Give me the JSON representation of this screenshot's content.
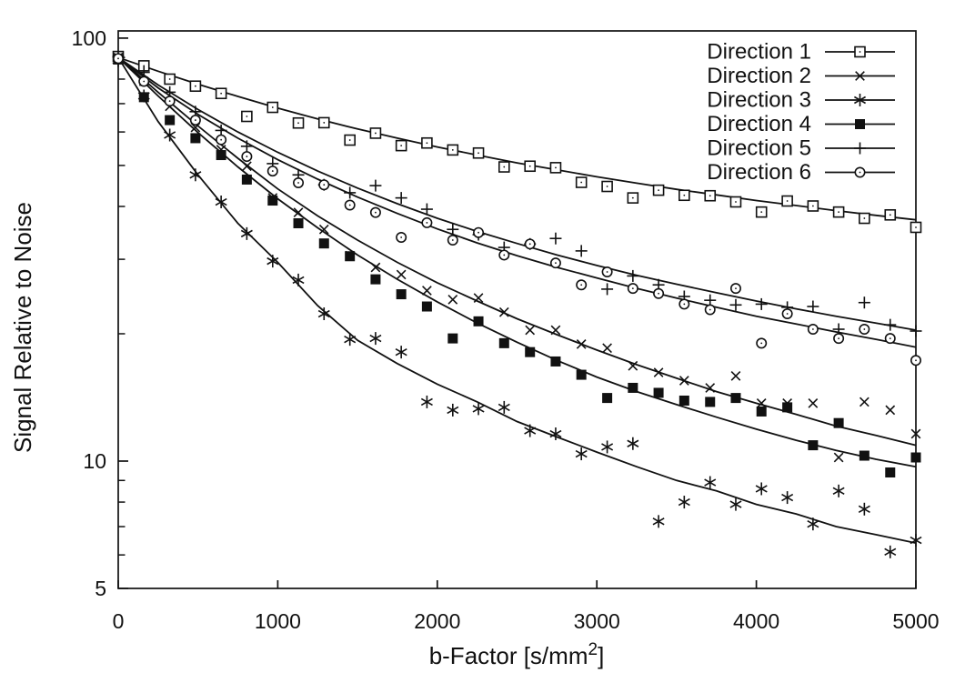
{
  "figure": {
    "background": "#ffffff",
    "ink_color": "#111111"
  },
  "chart_data": {
    "type": "line+scatter",
    "title": "",
    "xlabel": "b-Factor [s/mm²]",
    "xlabel_parts": {
      "pre": "b-Factor [s/mm",
      "sup": "2",
      "post": "]"
    },
    "ylabel": "Signal Relative to Noise",
    "x_axis": {
      "min": 0,
      "max": 5000,
      "scale": "linear",
      "ticks": [
        0,
        1000,
        2000,
        3000,
        4000,
        5000
      ]
    },
    "y_axis": {
      "min": 5,
      "max": 104,
      "scale": "log",
      "major_ticks": [
        {
          "value": 100,
          "label": "100"
        },
        {
          "value": 10,
          "label": "10"
        },
        {
          "value": 5,
          "label": "5"
        }
      ],
      "minor_ticks": [
        90,
        80,
        70,
        60,
        50,
        40,
        30,
        20,
        9,
        8,
        7,
        6
      ]
    },
    "grid": false,
    "legend_position": "top-right",
    "b": [
      0,
      161,
      323,
      484,
      645,
      806,
      968,
      1129,
      1290,
      1452,
      1613,
      1774,
      1935,
      2097,
      2258,
      2419,
      2581,
      2742,
      2903,
      3065,
      3226,
      3387,
      3548,
      3710,
      3871,
      4032,
      4194,
      4355,
      4516,
      4677,
      4839,
      5000
    ],
    "curve_b": [
      0,
      250,
      500,
      750,
      1000,
      1250,
      1500,
      1750,
      2000,
      2250,
      2500,
      2750,
      3000,
      3250,
      3500,
      3750,
      4000,
      4250,
      4500,
      4750,
      5000
    ],
    "series": [
      {
        "name": "Direction 1",
        "marker": "open-square",
        "points": [
          90.5,
          86,
          80,
          77,
          74,
          65.3,
          68.6,
          63,
          63.1,
          57.4,
          59.6,
          55.7,
          56.5,
          54.4,
          53.5,
          49.6,
          49.8,
          49.4,
          45.6,
          44.6,
          41.9,
          43.7,
          42.5,
          42.4,
          41,
          38.8,
          41.2,
          40.1,
          38.8,
          37.5,
          38.2,
          35.7
        ],
        "curve": [
          90,
          83.5,
          77.8,
          72.8,
          68.3,
          64.4,
          61,
          58,
          55.3,
          52.9,
          50.7,
          48.8,
          47,
          45.4,
          43.9,
          42.6,
          41.3,
          40.2,
          39.1,
          38.1,
          37.2
        ]
      },
      {
        "name": "Direction 2",
        "marker": "x",
        "points": [
          90,
          79,
          69,
          61.5,
          54.5,
          49.8,
          41.9,
          38.7,
          35.3,
          30.6,
          28.7,
          27.6,
          25.3,
          24.1,
          24.3,
          22.5,
          20.4,
          20.4,
          18.9,
          18.5,
          16.8,
          16.2,
          15.5,
          14.9,
          15.9,
          13.7,
          13.7,
          13.7,
          10.2,
          13.8,
          13.2,
          11.6
        ],
        "curve": [
          90,
          74.5,
          62,
          52,
          44,
          38,
          33.3,
          29.5,
          26.4,
          23.9,
          21.7,
          19.9,
          18.3,
          16.9,
          15.7,
          14.6,
          13.7,
          12.9,
          12.1,
          11.5,
          10.9
        ]
      },
      {
        "name": "Direction 3",
        "marker": "asterisk",
        "points": [
          88.5,
          73,
          59,
          47.5,
          41,
          34.5,
          29.7,
          26.8,
          22.3,
          19.4,
          19.5,
          18.1,
          13.8,
          13.2,
          13.3,
          13.4,
          11.8,
          11.6,
          10.4,
          10.8,
          11,
          7.2,
          8,
          8.9,
          7.9,
          8.6,
          8.2,
          7.1,
          8.5,
          7.7,
          6.1,
          6.5
        ],
        "curve": [
          90,
          63.5,
          47.5,
          36.5,
          29.5,
          23.3,
          19.3,
          17,
          15.2,
          13.8,
          12.4,
          11.4,
          10.5,
          9.7,
          9,
          8.5,
          7.9,
          7.5,
          7,
          6.7,
          6.4
        ]
      },
      {
        "name": "Direction 4",
        "marker": "filled-square",
        "points": [
          89,
          72.5,
          64,
          58,
          52.9,
          46.3,
          41.3,
          36.5,
          32.7,
          30.5,
          26.9,
          24.8,
          23.2,
          19.5,
          21.4,
          19,
          18.1,
          17.2,
          16,
          14.1,
          14.9,
          14.5,
          13.9,
          13.8,
          14.1,
          13.1,
          13.4,
          10.9,
          12.3,
          10.3,
          9.4,
          10.2
        ],
        "curve": [
          90,
          73,
          59.8,
          49.6,
          41.7,
          35.6,
          30.7,
          26.9,
          23.8,
          21.2,
          19.1,
          17.3,
          15.8,
          14.6,
          13.6,
          12.7,
          11.9,
          11.2,
          10.6,
          10.1,
          9.7
        ]
      },
      {
        "name": "Direction 5",
        "marker": "plus",
        "points": [
          90.5,
          83,
          74.5,
          67,
          60.5,
          55.5,
          50.5,
          47.5,
          45,
          43.1,
          44.8,
          41.9,
          39.4,
          35.3,
          34.3,
          32,
          32.6,
          33.6,
          31.4,
          25.5,
          27.4,
          26.1,
          24.5,
          24,
          23.4,
          23.5,
          23.1,
          23.2,
          20.5,
          23.7,
          21,
          20.3
        ],
        "curve": [
          90,
          77.5,
          67.8,
          60,
          53.7,
          48.5,
          44.2,
          40.6,
          37.5,
          34.9,
          32.7,
          30.7,
          29,
          27.5,
          26.2,
          25,
          23.9,
          22.9,
          22,
          21.2,
          20.4
        ]
      },
      {
        "name": "Direction 6",
        "marker": "open-circle",
        "points": [
          89.5,
          79,
          71,
          64,
          57.5,
          52.5,
          48.5,
          45.5,
          45,
          40.3,
          38.7,
          33.8,
          36.6,
          33.3,
          34.7,
          30.7,
          32.6,
          29.4,
          26.1,
          28,
          25.6,
          24.9,
          23.5,
          22.8,
          25.6,
          19,
          22.3,
          20.5,
          19.5,
          20.5,
          19.5,
          17.3
        ],
        "curve": [
          90,
          76.3,
          66,
          58,
          51.6,
          46.4,
          42.1,
          38.5,
          35.4,
          32.8,
          30.6,
          28.7,
          27.1,
          25.6,
          24.3,
          23.1,
          22,
          21.1,
          20.2,
          19.4,
          18.6
        ]
      }
    ]
  }
}
